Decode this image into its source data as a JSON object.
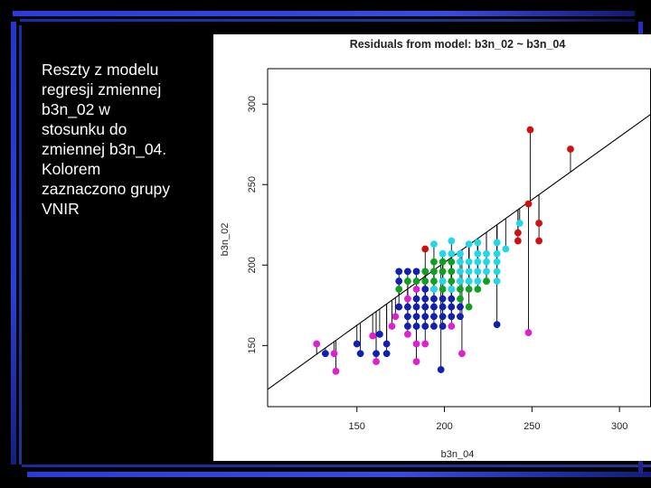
{
  "slide": {
    "description": "Reszty z modelu\nregresji zmiennej\nb3n_02 w\nstosunku do\nzmiennej b3n_04.\nKolorem\nzaznaczono grupy\nVNIR"
  },
  "chart_data": {
    "type": "scatter",
    "title": "Residuals from model:  b3n_02  ~  b3n_04",
    "xlabel": "b3n_04",
    "ylabel": "b3n_02",
    "xlim": [
      99,
      318
    ],
    "ylim": [
      112,
      322
    ],
    "xticks": [
      150,
      200,
      250,
      300
    ],
    "yticks": [
      150,
      200,
      250,
      300
    ],
    "regression": {
      "intercept": 45.4,
      "slope": 0.781
    },
    "grid": false,
    "colors": {
      "magenta": "#e020d0",
      "blue": "#1020b0",
      "green": "#10a020",
      "cyan": "#20d8e8",
      "red": "#d01010",
      "residual_line": "#000000",
      "fit_line": "#000000"
    },
    "points": [
      {
        "x": 127,
        "y": 151,
        "c": "magenta"
      },
      {
        "x": 132,
        "y": 145,
        "c": "blue"
      },
      {
        "x": 137,
        "y": 145,
        "c": "magenta"
      },
      {
        "x": 138,
        "y": 134,
        "c": "magenta"
      },
      {
        "x": 150,
        "y": 151,
        "c": "blue"
      },
      {
        "x": 152,
        "y": 145,
        "c": "blue"
      },
      {
        "x": 159,
        "y": 156,
        "c": "magenta"
      },
      {
        "x": 161,
        "y": 145,
        "c": "blue"
      },
      {
        "x": 161,
        "y": 140,
        "c": "magenta"
      },
      {
        "x": 163,
        "y": 157,
        "c": "blue"
      },
      {
        "x": 167,
        "y": 145,
        "c": "blue"
      },
      {
        "x": 167,
        "y": 151,
        "c": "blue"
      },
      {
        "x": 170,
        "y": 162,
        "c": "magenta"
      },
      {
        "x": 172,
        "y": 168,
        "c": "magenta"
      },
      {
        "x": 174,
        "y": 190,
        "c": "blue"
      },
      {
        "x": 174,
        "y": 174,
        "c": "blue"
      },
      {
        "x": 174,
        "y": 196,
        "c": "blue"
      },
      {
        "x": 174,
        "y": 185,
        "c": "green"
      },
      {
        "x": 179,
        "y": 162,
        "c": "blue"
      },
      {
        "x": 179,
        "y": 168,
        "c": "blue"
      },
      {
        "x": 179,
        "y": 174,
        "c": "blue"
      },
      {
        "x": 179,
        "y": 179,
        "c": "magenta"
      },
      {
        "x": 179,
        "y": 157,
        "c": "magenta"
      },
      {
        "x": 179,
        "y": 190,
        "c": "green"
      },
      {
        "x": 179,
        "y": 196,
        "c": "blue"
      },
      {
        "x": 184,
        "y": 162,
        "c": "blue"
      },
      {
        "x": 184,
        "y": 168,
        "c": "blue"
      },
      {
        "x": 184,
        "y": 174,
        "c": "blue"
      },
      {
        "x": 184,
        "y": 179,
        "c": "blue"
      },
      {
        "x": 184,
        "y": 151,
        "c": "magenta"
      },
      {
        "x": 184,
        "y": 140,
        "c": "magenta"
      },
      {
        "x": 184,
        "y": 190,
        "c": "green"
      },
      {
        "x": 184,
        "y": 196,
        "c": "blue"
      },
      {
        "x": 184,
        "y": 185,
        "c": "magenta"
      },
      {
        "x": 189,
        "y": 162,
        "c": "blue"
      },
      {
        "x": 189,
        "y": 168,
        "c": "blue"
      },
      {
        "x": 189,
        "y": 174,
        "c": "blue"
      },
      {
        "x": 189,
        "y": 179,
        "c": "blue"
      },
      {
        "x": 189,
        "y": 185,
        "c": "blue"
      },
      {
        "x": 189,
        "y": 190,
        "c": "green"
      },
      {
        "x": 189,
        "y": 196,
        "c": "green"
      },
      {
        "x": 189,
        "y": 210,
        "c": "red"
      },
      {
        "x": 189,
        "y": 151,
        "c": "magenta"
      },
      {
        "x": 194,
        "y": 162,
        "c": "blue"
      },
      {
        "x": 194,
        "y": 168,
        "c": "blue"
      },
      {
        "x": 194,
        "y": 174,
        "c": "blue"
      },
      {
        "x": 194,
        "y": 179,
        "c": "blue"
      },
      {
        "x": 194,
        "y": 185,
        "c": "green"
      },
      {
        "x": 194,
        "y": 190,
        "c": "green"
      },
      {
        "x": 194,
        "y": 196,
        "c": "green"
      },
      {
        "x": 194,
        "y": 202,
        "c": "green"
      },
      {
        "x": 194,
        "y": 213,
        "c": "cyan"
      },
      {
        "x": 194,
        "y": 185,
        "c": "cyan"
      },
      {
        "x": 198,
        "y": 135,
        "c": "blue"
      },
      {
        "x": 199,
        "y": 162,
        "c": "blue"
      },
      {
        "x": 199,
        "y": 168,
        "c": "blue"
      },
      {
        "x": 199,
        "y": 174,
        "c": "blue"
      },
      {
        "x": 199,
        "y": 179,
        "c": "blue"
      },
      {
        "x": 199,
        "y": 185,
        "c": "green"
      },
      {
        "x": 199,
        "y": 190,
        "c": "green"
      },
      {
        "x": 199,
        "y": 196,
        "c": "green"
      },
      {
        "x": 199,
        "y": 202,
        "c": "green"
      },
      {
        "x": 199,
        "y": 207,
        "c": "cyan"
      },
      {
        "x": 199,
        "y": 190,
        "c": "cyan"
      },
      {
        "x": 204,
        "y": 162,
        "c": "magenta"
      },
      {
        "x": 204,
        "y": 168,
        "c": "blue"
      },
      {
        "x": 204,
        "y": 174,
        "c": "blue"
      },
      {
        "x": 204,
        "y": 179,
        "c": "blue"
      },
      {
        "x": 204,
        "y": 185,
        "c": "green"
      },
      {
        "x": 204,
        "y": 190,
        "c": "green"
      },
      {
        "x": 204,
        "y": 196,
        "c": "green"
      },
      {
        "x": 204,
        "y": 202,
        "c": "green"
      },
      {
        "x": 204,
        "y": 207,
        "c": "cyan"
      },
      {
        "x": 204,
        "y": 215,
        "c": "cyan"
      },
      {
        "x": 204,
        "y": 185,
        "c": "cyan"
      },
      {
        "x": 209,
        "y": 168,
        "c": "blue"
      },
      {
        "x": 209,
        "y": 174,
        "c": "blue"
      },
      {
        "x": 209,
        "y": 179,
        "c": "green"
      },
      {
        "x": 209,
        "y": 185,
        "c": "green"
      },
      {
        "x": 209,
        "y": 190,
        "c": "green"
      },
      {
        "x": 209,
        "y": 196,
        "c": "cyan"
      },
      {
        "x": 209,
        "y": 202,
        "c": "cyan"
      },
      {
        "x": 209,
        "y": 207,
        "c": "cyan"
      },
      {
        "x": 209,
        "y": 190,
        "c": "cyan"
      },
      {
        "x": 210,
        "y": 145,
        "c": "magenta"
      },
      {
        "x": 214,
        "y": 174,
        "c": "green"
      },
      {
        "x": 214,
        "y": 185,
        "c": "green"
      },
      {
        "x": 214,
        "y": 190,
        "c": "green"
      },
      {
        "x": 214,
        "y": 196,
        "c": "cyan"
      },
      {
        "x": 214,
        "y": 202,
        "c": "cyan"
      },
      {
        "x": 214,
        "y": 213,
        "c": "cyan"
      },
      {
        "x": 214,
        "y": 190,
        "c": "cyan"
      },
      {
        "x": 219,
        "y": 185,
        "c": "green"
      },
      {
        "x": 219,
        "y": 190,
        "c": "cyan"
      },
      {
        "x": 219,
        "y": 196,
        "c": "cyan"
      },
      {
        "x": 219,
        "y": 202,
        "c": "cyan"
      },
      {
        "x": 219,
        "y": 207,
        "c": "cyan"
      },
      {
        "x": 219,
        "y": 214,
        "c": "cyan"
      },
      {
        "x": 224,
        "y": 190,
        "c": "cyan"
      },
      {
        "x": 224,
        "y": 196,
        "c": "cyan"
      },
      {
        "x": 224,
        "y": 202,
        "c": "cyan"
      },
      {
        "x": 224,
        "y": 207,
        "c": "cyan"
      },
      {
        "x": 224,
        "y": 190,
        "c": "green"
      },
      {
        "x": 230,
        "y": 163,
        "c": "blue"
      },
      {
        "x": 230,
        "y": 202,
        "c": "cyan"
      },
      {
        "x": 230,
        "y": 207,
        "c": "cyan"
      },
      {
        "x": 230,
        "y": 214,
        "c": "cyan"
      },
      {
        "x": 230,
        "y": 196,
        "c": "cyan"
      },
      {
        "x": 230,
        "y": 190,
        "c": "cyan"
      },
      {
        "x": 235,
        "y": 210,
        "c": "cyan"
      },
      {
        "x": 242,
        "y": 215,
        "c": "red"
      },
      {
        "x": 242,
        "y": 220,
        "c": "red"
      },
      {
        "x": 243,
        "y": 226,
        "c": "cyan"
      },
      {
        "x": 248,
        "y": 158,
        "c": "magenta"
      },
      {
        "x": 248,
        "y": 238,
        "c": "red"
      },
      {
        "x": 249,
        "y": 284,
        "c": "red"
      },
      {
        "x": 254,
        "y": 226,
        "c": "red"
      },
      {
        "x": 254,
        "y": 215,
        "c": "red"
      },
      {
        "x": 272,
        "y": 272,
        "c": "red"
      }
    ]
  }
}
